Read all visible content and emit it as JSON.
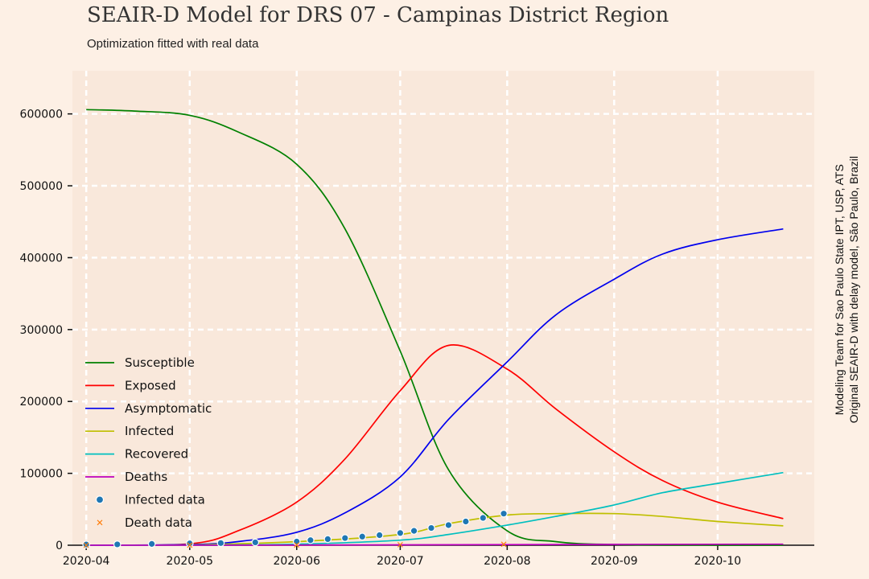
{
  "header": {
    "title": "SEAIR-D Model for DRS 07 - Campinas District Region",
    "subtitle": "Optimization fitted with real data"
  },
  "credits": {
    "line1": "Modeling Team for Sao Paulo State IPT, USP, ATS",
    "line2": "Original SEAIR-D with delay model, São Paulo, Brazil"
  },
  "colors": {
    "background": "#fdf0e5",
    "plot_area": "#f9e8db",
    "grid": "#ffffff"
  },
  "chart_data": {
    "type": "line",
    "xlabel": "",
    "ylabel": "",
    "x_range": [
      "2020-03-28",
      "2020-10-29"
    ],
    "ylim": [
      0,
      660000
    ],
    "x_ticks": [
      "2020-04",
      "2020-05",
      "2020-06",
      "2020-07",
      "2020-08",
      "2020-09",
      "2020-10"
    ],
    "y_ticks": [
      "0",
      "100000",
      "200000",
      "300000",
      "400000",
      "500000",
      "600000"
    ],
    "grid": true,
    "legend_position": "lower-left",
    "series": [
      {
        "name": "Susceptible",
        "color": "#008000",
        "kind": "line",
        "x": [
          "2020-04-01",
          "2020-04-15",
          "2020-05-01",
          "2020-05-15",
          "2020-06-01",
          "2020-06-15",
          "2020-07-01",
          "2020-07-15",
          "2020-08-01",
          "2020-08-15",
          "2020-09-01",
          "2020-10-01",
          "2020-10-20"
        ],
        "y": [
          606000,
          604000,
          598000,
          575000,
          530000,
          440000,
          270000,
          105000,
          20000,
          5000,
          1000,
          0,
          0
        ]
      },
      {
        "name": "Exposed",
        "color": "#ff0000",
        "kind": "line",
        "x": [
          "2020-04-01",
          "2020-05-01",
          "2020-05-15",
          "2020-06-01",
          "2020-06-15",
          "2020-07-01",
          "2020-07-15",
          "2020-08-01",
          "2020-08-15",
          "2020-09-01",
          "2020-09-15",
          "2020-10-01",
          "2020-10-20"
        ],
        "y": [
          0,
          2000,
          20000,
          60000,
          120000,
          215000,
          278000,
          245000,
          190000,
          130000,
          90000,
          60000,
          37000
        ]
      },
      {
        "name": "Asymptomatic",
        "color": "#0000ee",
        "kind": "line",
        "x": [
          "2020-04-01",
          "2020-05-01",
          "2020-05-15",
          "2020-06-01",
          "2020-06-15",
          "2020-07-01",
          "2020-07-15",
          "2020-08-01",
          "2020-08-15",
          "2020-09-01",
          "2020-09-15",
          "2020-10-01",
          "2020-10-20"
        ],
        "y": [
          0,
          1000,
          5000,
          18000,
          45000,
          95000,
          175000,
          255000,
          320000,
          370000,
          405000,
          425000,
          440000
        ]
      },
      {
        "name": "Infected",
        "color": "#bfbf00",
        "kind": "line",
        "x": [
          "2020-04-01",
          "2020-05-01",
          "2020-06-01",
          "2020-07-01",
          "2020-07-15",
          "2020-08-01",
          "2020-08-15",
          "2020-09-01",
          "2020-09-15",
          "2020-10-01",
          "2020-10-20"
        ],
        "y": [
          0,
          500,
          5000,
          15000,
          30000,
          42000,
          44000,
          44000,
          40000,
          33000,
          27000
        ]
      },
      {
        "name": "Recovered",
        "color": "#00bfbf",
        "kind": "line",
        "x": [
          "2020-04-01",
          "2020-05-01",
          "2020-06-01",
          "2020-07-01",
          "2020-07-15",
          "2020-08-01",
          "2020-08-15",
          "2020-09-01",
          "2020-09-15",
          "2020-10-01",
          "2020-10-20"
        ],
        "y": [
          0,
          200,
          1500,
          7000,
          15000,
          28000,
          40000,
          56000,
          73000,
          86000,
          101000
        ]
      },
      {
        "name": "Deaths",
        "color": "#bf00bf",
        "kind": "line",
        "x": [
          "2020-04-01",
          "2020-06-01",
          "2020-08-01",
          "2020-10-20"
        ],
        "y": [
          0,
          200,
          900,
          1500
        ]
      },
      {
        "name": "Infected data",
        "color": "#1f77b4",
        "kind": "scatter",
        "x": [
          "2020-04-01",
          "2020-04-10",
          "2020-04-20",
          "2020-05-01",
          "2020-05-10",
          "2020-05-20",
          "2020-06-01",
          "2020-06-05",
          "2020-06-10",
          "2020-06-15",
          "2020-06-20",
          "2020-06-25",
          "2020-07-01",
          "2020-07-05",
          "2020-07-10",
          "2020-07-15",
          "2020-07-20",
          "2020-07-25",
          "2020-07-31"
        ],
        "y": [
          1000,
          1200,
          1800,
          2500,
          3000,
          4000,
          5000,
          7000,
          8500,
          10000,
          12000,
          14000,
          17000,
          20000,
          24000,
          28000,
          33000,
          38000,
          44000
        ]
      },
      {
        "name": "Death data",
        "color": "#ff7f0e",
        "kind": "marker-x",
        "x": [
          "2020-04-01",
          "2020-05-01",
          "2020-06-01",
          "2020-07-01",
          "2020-07-31"
        ],
        "y": [
          0,
          100,
          300,
          700,
          1300
        ]
      }
    ]
  }
}
